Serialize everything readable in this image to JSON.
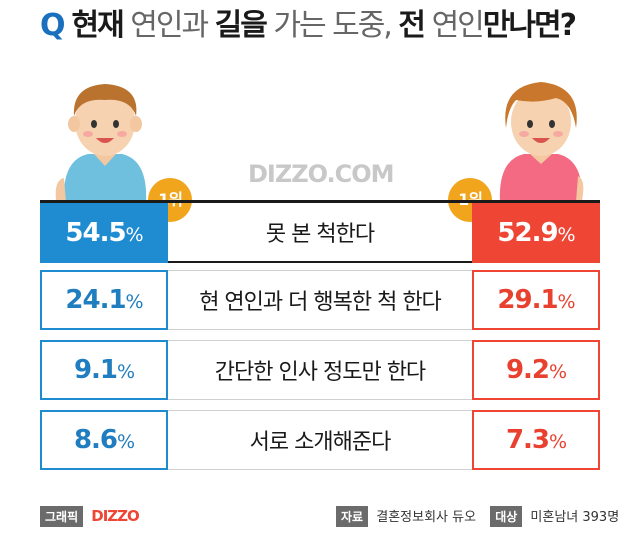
{
  "header": {
    "q": "Q",
    "title_part1": "현재",
    "title_part2": "연인과",
    "title_part3": "길을",
    "title_part4": "가는 도중,",
    "title_part5": "전",
    "title_part6": "연인",
    "title_part7": "만나면?"
  },
  "brand": "DIZZO.COM",
  "rank_label": "1위",
  "rows": [
    {
      "label": "못 본 척한다",
      "male": "54.5",
      "female": "52.9"
    },
    {
      "label": "현 연인과 더 행복한 척 한다",
      "male": "24.1",
      "female": "29.1"
    },
    {
      "label": "간단한 인사 정도만 한다",
      "male": "9.1",
      "female": "9.2"
    },
    {
      "label": "서로 소개해준다",
      "male": "8.6",
      "female": "7.3"
    }
  ],
  "unit": "%",
  "footer": {
    "graphic_tag": "그래픽",
    "graphic_logo": "DIZZO",
    "source_tag": "자료",
    "source_value": "결혼정보회사 듀오",
    "target_tag": "대상",
    "target_value": "미혼남녀 393명"
  },
  "colors": {
    "male": "#1f8bd1",
    "female": "#ee4535",
    "badge": "#f0a51c"
  }
}
